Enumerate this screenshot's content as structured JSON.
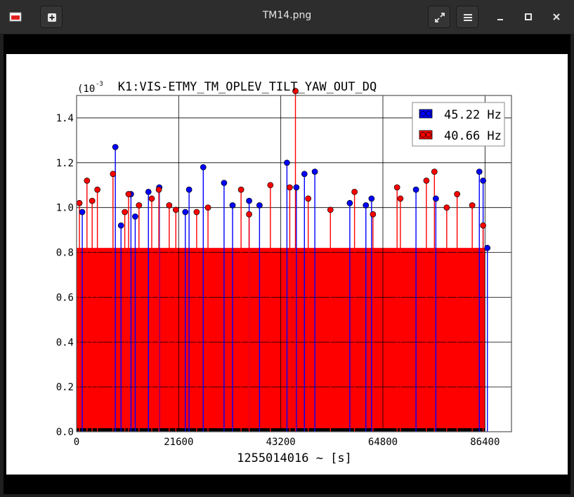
{
  "window": {
    "title": "TM14.png",
    "icons": {
      "app": "image-icon",
      "new": "plus-box-icon",
      "fullscreen": "expand-icon",
      "menu": "hamburger-menu-icon",
      "minimize": "minimize-icon",
      "maximize": "maximize-icon",
      "close": "close-icon"
    }
  },
  "chart_data": {
    "type": "scatter",
    "title": "K1:VIS-ETMY_TM_OPLEV_TILT_YAW_OUT_DQ",
    "xlabel": "1255014016 ~ [s]",
    "ylabel": "",
    "scale_label": "(10",
    "scale_exponent": "-3",
    "xlim": [
      0,
      92000
    ],
    "ylim": [
      0,
      0.0015
    ],
    "x_ticks": [
      0,
      21600,
      43200,
      64800,
      86400
    ],
    "x_tick_labels": [
      "0",
      "21600",
      "43200",
      "64800",
      "86400"
    ],
    "y_ticks": [
      0.0,
      0.0002,
      0.0004,
      0.0006,
      0.0008,
      0.001,
      0.0012,
      0.0014
    ],
    "y_tick_labels": [
      "0.0",
      "0.2",
      "0.4",
      "0.6",
      "0.8",
      "1.0",
      "1.2",
      "1.4"
    ],
    "grid": true,
    "legend_position": "top-right",
    "stem_plot": true,
    "series": [
      {
        "name": "45.22 Hz",
        "color": "#0000ff",
        "values": [
          [
            1200,
            0.00098
          ],
          [
            8200,
            0.00127
          ],
          [
            9400,
            0.00092
          ],
          [
            11500,
            0.00106
          ],
          [
            12400,
            0.00096
          ],
          [
            15200,
            0.00107
          ],
          [
            17500,
            0.00109
          ],
          [
            23000,
            0.00098
          ],
          [
            23800,
            0.00108
          ],
          [
            26800,
            0.00118
          ],
          [
            31200,
            0.00111
          ],
          [
            33000,
            0.00101
          ],
          [
            36500,
            0.00103
          ],
          [
            38700,
            0.00101
          ],
          [
            44500,
            0.0012
          ],
          [
            46500,
            0.00109
          ],
          [
            48200,
            0.00115
          ],
          [
            50400,
            0.00116
          ],
          [
            57800,
            0.00102
          ],
          [
            61200,
            0.00101
          ],
          [
            62400,
            0.00104
          ],
          [
            71800,
            0.00108
          ],
          [
            76000,
            0.00104
          ],
          [
            85200,
            0.00116
          ],
          [
            86000,
            0.00112
          ],
          [
            86900,
            0.00082
          ]
        ]
      },
      {
        "name": "40.66 Hz",
        "color": "#ff0000",
        "values": [
          [
            600,
            0.00102
          ],
          [
            2200,
            0.00112
          ],
          [
            3300,
            0.00103
          ],
          [
            4400,
            0.00108
          ],
          [
            7700,
            0.00115
          ],
          [
            10200,
            0.00098
          ],
          [
            11000,
            0.00106
          ],
          [
            13200,
            0.00101
          ],
          [
            15900,
            0.00104
          ],
          [
            17400,
            0.00108
          ],
          [
            19600,
            0.00101
          ],
          [
            21000,
            0.00099
          ],
          [
            25400,
            0.00098
          ],
          [
            27800,
            0.001
          ],
          [
            34800,
            0.00108
          ],
          [
            36500,
            0.00097
          ],
          [
            41000,
            0.0011
          ],
          [
            45100,
            0.00109
          ],
          [
            46300,
            0.00152
          ],
          [
            49000,
            0.00104
          ],
          [
            53700,
            0.00099
          ],
          [
            58800,
            0.00107
          ],
          [
            62700,
            0.00097
          ],
          [
            67800,
            0.00109
          ],
          [
            68500,
            0.00104
          ],
          [
            74000,
            0.00112
          ],
          [
            75700,
            0.00116
          ],
          [
            78300,
            0.001
          ],
          [
            80500,
            0.00106
          ],
          [
            83700,
            0.00101
          ],
          [
            86000,
            0.00092
          ]
        ]
      }
    ]
  }
}
